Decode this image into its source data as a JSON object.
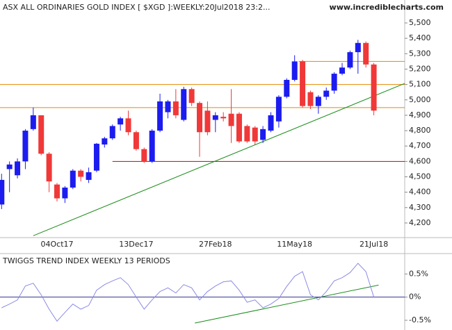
{
  "header": {
    "title": "ASX ALL ORDINARIES GOLD INDEX [ $XGD ]:WEEKLY:20Jul2018 23:2...",
    "site": "www.incrediblecharts.com"
  },
  "chart_data": [
    {
      "type": "candlestick",
      "categories": [
        null,
        null,
        null,
        null,
        null,
        null,
        null,
        "04Oct17",
        null,
        null,
        null,
        null,
        null,
        null,
        null,
        null,
        null,
        "13Dec17",
        null,
        null,
        null,
        null,
        null,
        null,
        null,
        null,
        null,
        "27Feb18",
        null,
        null,
        null,
        null,
        null,
        null,
        null,
        null,
        null,
        "11May18",
        null,
        null,
        null,
        null,
        null,
        null,
        null,
        null,
        null,
        "21Jul18"
      ],
      "open": [
        4320,
        4550,
        4510,
        4600,
        4810,
        4900,
        4650,
        4450,
        4360,
        4430,
        4540,
        4480,
        4540,
        4710,
        4750,
        4840,
        4880,
        4790,
        4680,
        4600,
        4800,
        4920,
        4990,
        4870,
        5070,
        4980,
        4930,
        4870,
        4890,
        4910,
        4910,
        4830,
        4820,
        4740,
        4800,
        4860,
        5020,
        5130,
        5250,
        5050,
        4960,
        5020,
        5060,
        5170,
        5210,
        5310,
        5370,
        5230
      ],
      "high": [
        4520,
        4600,
        4620,
        4810,
        4950,
        4900,
        4660,
        4460,
        4440,
        4550,
        4550,
        4560,
        4720,
        4760,
        4840,
        4890,
        4930,
        4800,
        4690,
        4810,
        5040,
        5000,
        5070,
        5085,
        5080,
        4990,
        4990,
        4920,
        4920,
        5070,
        4920,
        4840,
        4830,
        4830,
        4920,
        5030,
        5140,
        5290,
        5260,
        5060,
        5030,
        5080,
        5180,
        5240,
        5320,
        5390,
        5380,
        5240
      ],
      "low": [
        4290,
        4400,
        4490,
        4550,
        4800,
        4640,
        4400,
        4340,
        4330,
        4420,
        4470,
        4460,
        4530,
        4690,
        4740,
        4800,
        4770,
        4670,
        4590,
        4590,
        4790,
        4880,
        4880,
        4860,
        4960,
        4630,
        4770,
        4790,
        4860,
        4720,
        4720,
        4720,
        4710,
        4720,
        4790,
        4820,
        5010,
        5120,
        4950,
        4940,
        4910,
        5000,
        5040,
        5160,
        5200,
        5170,
        5210,
        4900
      ],
      "close": [
        4480,
        4580,
        4600,
        4800,
        4900,
        4650,
        4470,
        4360,
        4430,
        4540,
        4500,
        4530,
        4715,
        4750,
        4830,
        4880,
        4790,
        4680,
        4600,
        4800,
        4990,
        4990,
        4900,
        5070,
        4980,
        4790,
        4790,
        4900,
        4880,
        4830,
        4730,
        4730,
        4730,
        4810,
        4900,
        5020,
        5130,
        5250,
        4960,
        4960,
        5020,
        5060,
        5170,
        5210,
        5310,
        5370,
        5230,
        4930
      ],
      "up_color": "#1c1cf0",
      "down_color": "#f03838",
      "xlim": [
        -0.2,
        50.9
      ],
      "ylim": [
        4105,
        5649
      ],
      "yticks": [
        {
          "value": 4200,
          "label": "4,200"
        },
        {
          "value": 4300,
          "label": "4,300"
        },
        {
          "value": 4400,
          "label": "4,400"
        },
        {
          "value": 4500,
          "label": "4,500"
        },
        {
          "value": 4600,
          "label": "4,600"
        },
        {
          "value": 4700,
          "label": "4,700"
        },
        {
          "value": 4800,
          "label": "4,800"
        },
        {
          "value": 4900,
          "label": "4,900"
        },
        {
          "value": 5000,
          "label": "5,000"
        },
        {
          "value": 5100,
          "label": "5,100"
        },
        {
          "value": 5200,
          "label": "5,200"
        },
        {
          "value": 5300,
          "label": "5,300"
        },
        {
          "value": 5400,
          "label": "5,400"
        },
        {
          "value": 5500,
          "label": "5,500"
        }
      ],
      "lines": [
        {
          "color": "#e08a00",
          "x": [
            -0.2,
            50.9
          ],
          "values": [
            5100,
            5100
          ]
        },
        {
          "color": "#e08a00",
          "x": [
            -0.2,
            50.9
          ],
          "values": [
            4950,
            4950
          ]
        },
        {
          "color": "#e08a00",
          "x": [
            37.5,
            50.9
          ],
          "values": [
            5250,
            5250
          ]
        },
        {
          "color": "#cc0000",
          "x": [
            14,
            50.9
          ],
          "values": [
            4600,
            4600
          ]
        },
        {
          "color": "#1a8c1a",
          "x": [
            4,
            50.9
          ],
          "values": [
            4117,
            5107
          ]
        }
      ]
    },
    {
      "type": "line",
      "title": "TWIGGS TREND INDEX WEEKLY 13 PERIODS",
      "color": "#8a8ae6",
      "zero_color": "#303090",
      "values": [
        -0.23,
        -0.15,
        -0.06,
        0.24,
        0.3,
        0.05,
        -0.26,
        -0.52,
        -0.33,
        -0.15,
        -0.26,
        -0.18,
        0.15,
        0.27,
        0.35,
        0.42,
        0.27,
        0,
        -0.26,
        -0.06,
        0.12,
        0.2,
        0.09,
        0.27,
        0.2,
        -0.06,
        0.12,
        0.24,
        0.33,
        0.35,
        0.15,
        -0.11,
        -0.06,
        -0.23,
        -0.15,
        -0.03,
        0.23,
        0.45,
        0.55,
        0.05,
        -0.06,
        0.12,
        0.35,
        0.42,
        0.53,
        0.73,
        0.55,
        0
      ],
      "xlim": [
        -0.2,
        50.9
      ],
      "ylim": [
        -0.71,
        0.91
      ],
      "yticks": [
        {
          "value": 0.5,
          "label": "0.5%"
        },
        {
          "value": 0,
          "label": "0%"
        },
        {
          "value": -0.5,
          "label": "-0.5%"
        }
      ],
      "lines": [
        {
          "color": "#1a8c1a",
          "x": [
            24.4,
            47.6
          ],
          "values": [
            -0.56,
            0.26
          ]
        }
      ]
    }
  ]
}
